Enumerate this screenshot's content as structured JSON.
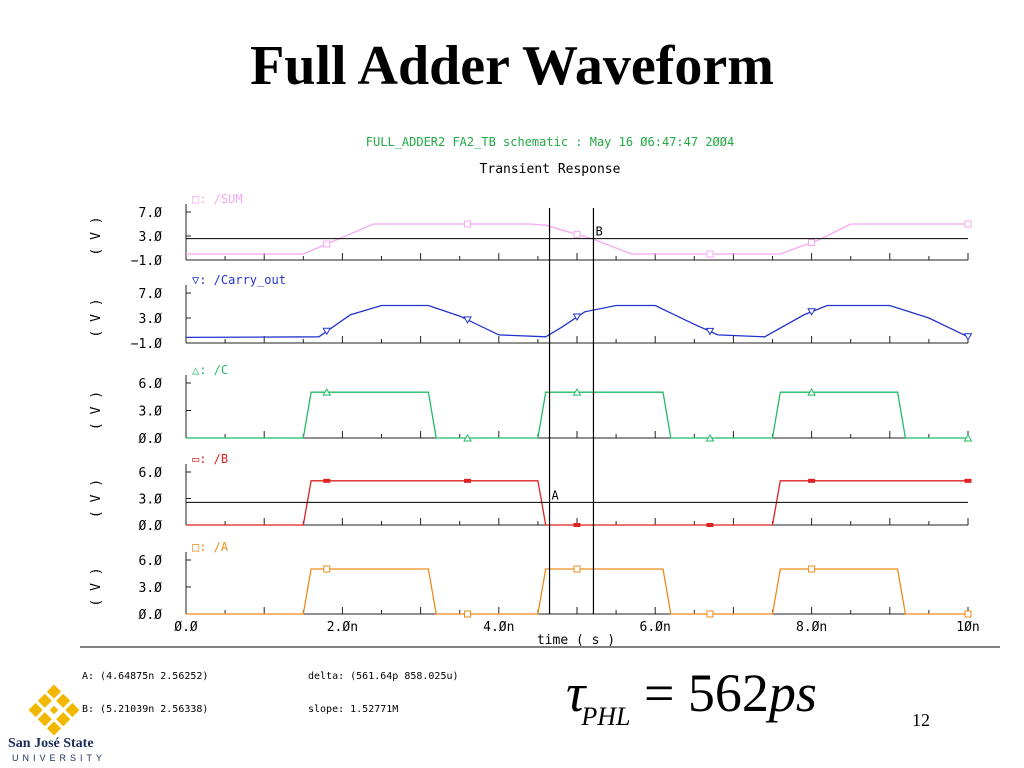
{
  "slide": {
    "title": "Full Adder Waveform",
    "page_number": "12"
  },
  "formula": {
    "symbol": "τ",
    "subscript": "PHL",
    "equals": "=",
    "value": "562",
    "unit": "ps"
  },
  "logo": {
    "name_line1": "San José State",
    "name_line2": "UNIVERSITY"
  },
  "readout": {
    "cursor_a": "A: (4.64875n 2.56252)",
    "cursor_b": "B: (5.21039n 2.56338)",
    "delta": "delta: (561.64p 858.025u)",
    "slope": "slope: 1.52771M"
  },
  "colors": {
    "sum": "#f7a6f2",
    "carry_out": "#2233cc",
    "c": "#22bb66",
    "b": "#dd2222",
    "a": "#ee8a1a",
    "header": "#22aa44",
    "axis": "#222222"
  },
  "chart_data": {
    "type": "line",
    "header": "FULL_ADDER2 FA2_TB schematic : May 16 Ø6:47:47 2ØØ4",
    "title": "Transient Response",
    "xlabel": "time ( s )",
    "x_ticks": [
      "Ø.Ø",
      "2.Øn",
      "4.Øn",
      "6.Øn",
      "8.Øn",
      "1Øn"
    ],
    "xlim": [
      0,
      10
    ],
    "x_unit": "ns",
    "cursors": [
      {
        "label": "A",
        "x": 4.64875,
        "y": 2.56252,
        "panel": "/B"
      },
      {
        "label": "B",
        "x": 5.21039,
        "y": 2.56338,
        "panel": "/SUM"
      }
    ],
    "panels": [
      {
        "name": "/SUM",
        "marker": "□",
        "ylabel": "( V )",
        "y_ticks": [
          "7.Ø",
          "3.Ø",
          "−1.Ø"
        ],
        "ylim": [
          -1,
          7
        ],
        "points": [
          [
            0,
            0
          ],
          [
            1.5,
            0
          ],
          [
            2.4,
            5
          ],
          [
            4.4,
            5
          ],
          [
            4.6,
            4.8
          ],
          [
            5.2,
            2.5
          ],
          [
            5.7,
            0
          ],
          [
            7.6,
            0
          ],
          [
            8.1,
            2.4
          ],
          [
            8.5,
            5
          ],
          [
            10,
            5
          ]
        ],
        "marker_x": [
          1.8,
          3.6,
          5.0,
          6.7,
          8.0,
          10.0
        ]
      },
      {
        "name": "/Carry_out",
        "marker": "▽",
        "ylabel": "( V )",
        "y_ticks": [
          "7.Ø",
          "3.Ø",
          "−1.Ø"
        ],
        "ylim": [
          -1,
          7
        ],
        "points": [
          [
            0,
            -0.1
          ],
          [
            1.7,
            0
          ],
          [
            2.1,
            3.5
          ],
          [
            2.5,
            5
          ],
          [
            3.1,
            5
          ],
          [
            3.5,
            3.3
          ],
          [
            4.0,
            0.3
          ],
          [
            4.6,
            0
          ],
          [
            4.8,
            1.5
          ],
          [
            5.1,
            4
          ],
          [
            5.5,
            5
          ],
          [
            6.0,
            5
          ],
          [
            6.5,
            2
          ],
          [
            6.8,
            0.3
          ],
          [
            7.4,
            0
          ],
          [
            7.9,
            3.5
          ],
          [
            8.2,
            5
          ],
          [
            9.0,
            5
          ],
          [
            9.5,
            3
          ],
          [
            10,
            0
          ]
        ],
        "marker_x": [
          1.8,
          3.6,
          5.0,
          6.7,
          8.0,
          10.0
        ]
      },
      {
        "name": "/C",
        "marker": "△",
        "ylabel": "( V )",
        "y_ticks": [
          "6.Ø",
          "3.Ø",
          "Ø.Ø"
        ],
        "ylim": [
          0,
          6
        ],
        "points": [
          [
            0,
            0
          ],
          [
            1.5,
            0
          ],
          [
            1.6,
            5
          ],
          [
            3.1,
            5
          ],
          [
            3.2,
            0
          ],
          [
            4.5,
            0
          ],
          [
            4.6,
            5
          ],
          [
            6.1,
            5
          ],
          [
            6.2,
            0
          ],
          [
            7.5,
            0
          ],
          [
            7.6,
            5
          ],
          [
            9.1,
            5
          ],
          [
            9.2,
            0
          ],
          [
            10,
            0
          ]
        ],
        "marker_x": [
          1.8,
          3.6,
          5.0,
          6.7,
          8.0,
          10.0
        ]
      },
      {
        "name": "/B",
        "marker": "▭",
        "ylabel": "( V )",
        "y_ticks": [
          "6.Ø",
          "3.Ø",
          "Ø.Ø"
        ],
        "ylim": [
          0,
          6
        ],
        "points": [
          [
            0,
            0
          ],
          [
            1.5,
            0
          ],
          [
            1.6,
            5
          ],
          [
            4.5,
            5
          ],
          [
            4.6,
            0
          ],
          [
            7.5,
            0
          ],
          [
            7.6,
            5
          ],
          [
            10,
            5
          ]
        ],
        "marker_x": [
          1.8,
          3.6,
          5.0,
          6.7,
          8.0,
          10.0
        ]
      },
      {
        "name": "/A",
        "marker": "□",
        "ylabel": "( V )",
        "y_ticks": [
          "6.Ø",
          "3.Ø",
          "Ø.Ø"
        ],
        "ylim": [
          0,
          6
        ],
        "points": [
          [
            0,
            0
          ],
          [
            1.5,
            0
          ],
          [
            1.6,
            5
          ],
          [
            3.1,
            5
          ],
          [
            3.2,
            0
          ],
          [
            4.5,
            0
          ],
          [
            4.6,
            5
          ],
          [
            6.1,
            5
          ],
          [
            6.2,
            0
          ],
          [
            7.5,
            0
          ],
          [
            7.6,
            5
          ],
          [
            9.1,
            5
          ],
          [
            9.2,
            0
          ],
          [
            10,
            0
          ]
        ],
        "marker_x": [
          1.8,
          3.6,
          5.0,
          6.7,
          8.0,
          10.0
        ]
      }
    ]
  }
}
